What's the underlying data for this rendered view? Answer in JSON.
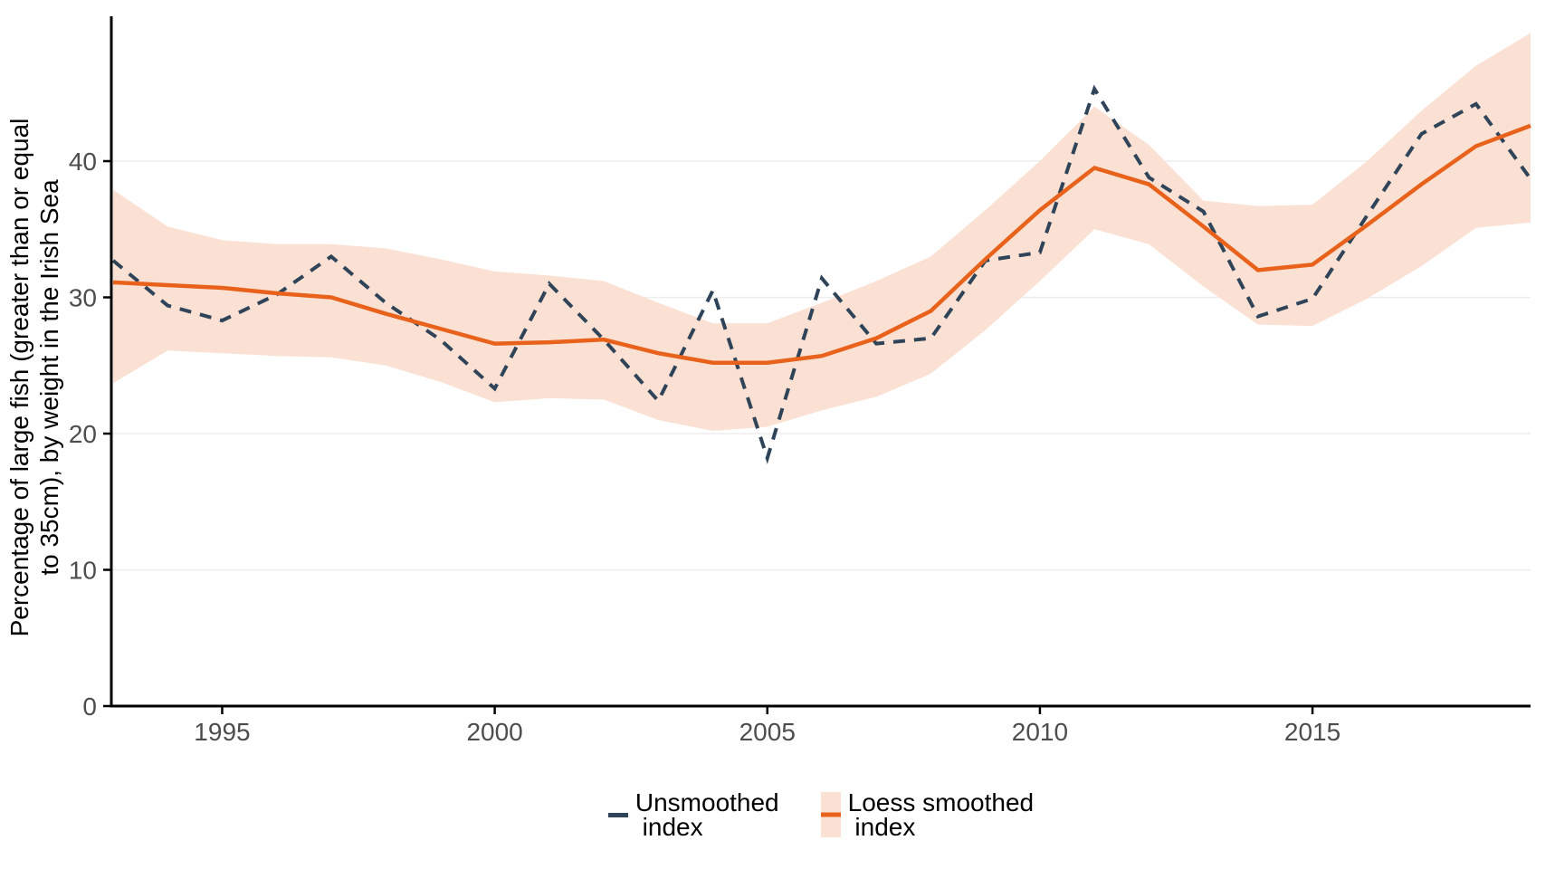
{
  "figure": {
    "y_axis_title_line1": "Percentage of large fish (greater than or equal",
    "y_axis_title_line2": "to 35cm), by weight in the Irish Sea",
    "legend": {
      "unsmoothed_label": "Unsmoothed\n index",
      "loess_label": "Loess smoothed\n index"
    }
  },
  "chart_data": {
    "type": "line",
    "title": "",
    "xlabel": "",
    "ylabel": "Percentage of large fish (greater than or equal to 35cm), by weight in the Irish Sea",
    "x": [
      1993,
      1994,
      1995,
      1996,
      1997,
      1998,
      1999,
      2000,
      2001,
      2002,
      2003,
      2004,
      2005,
      2006,
      2007,
      2008,
      2009,
      2010,
      2011,
      2012,
      2013,
      2014,
      2015,
      2016,
      2017,
      2018,
      2019
    ],
    "series": [
      {
        "name": "Unsmoothed index",
        "style": "dashed",
        "color": "#304459",
        "values": [
          32.7,
          29.4,
          28.3,
          30.2,
          33.0,
          29.6,
          26.9,
          23.3,
          31.0,
          26.9,
          22.4,
          30.5,
          18.2,
          31.4,
          26.6,
          27.0,
          32.7,
          33.3,
          45.3,
          38.8,
          36.3,
          28.6,
          29.9,
          36.0,
          42.0,
          44.2,
          38.7
        ]
      },
      {
        "name": "Loess smoothed index",
        "style": "solid",
        "color": "#e8621c",
        "values": [
          31.1,
          30.9,
          30.7,
          30.3,
          30.0,
          28.8,
          27.7,
          26.6,
          26.7,
          26.9,
          25.9,
          25.2,
          25.2,
          25.7,
          27.0,
          29.0,
          32.8,
          36.4,
          39.5,
          38.3,
          35.2,
          32.0,
          32.4,
          35.3,
          38.3,
          41.1,
          42.6
        ],
        "band": {
          "fill": "#fbe1d3",
          "lower": [
            23.7,
            26.1,
            25.9,
            25.7,
            25.6,
            25.0,
            23.8,
            22.3,
            22.6,
            22.5,
            21.0,
            20.2,
            20.5,
            21.7,
            22.7,
            24.4,
            27.6,
            31.2,
            35.0,
            33.9,
            30.8,
            28.0,
            27.9,
            29.9,
            32.3,
            35.1,
            35.5
          ],
          "upper": [
            37.9,
            35.2,
            34.2,
            33.9,
            33.9,
            33.6,
            32.8,
            31.9,
            31.6,
            31.2,
            29.6,
            28.1,
            28.1,
            29.6,
            31.2,
            33.0,
            36.4,
            40.0,
            44.0,
            41.2,
            37.1,
            36.7,
            36.8,
            40.0,
            43.7,
            47.0,
            49.4
          ]
        }
      }
    ],
    "xticks": [
      1995,
      2000,
      2005,
      2010,
      2015
    ],
    "yticks": [
      0,
      10,
      20,
      30,
      40
    ],
    "xlim": [
      1993,
      2019
    ],
    "ylim": [
      0,
      50.6
    ],
    "grid": "horizontal-major-only",
    "legend_position": "bottom",
    "colors": {
      "grid": "#ededed",
      "axis_line": "#000000",
      "tick_label": "#4d4d4d"
    }
  }
}
